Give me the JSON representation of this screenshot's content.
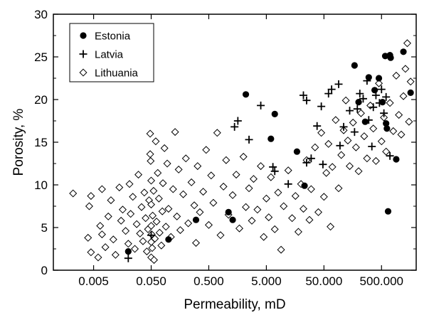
{
  "chart_data": {
    "type": "scatter",
    "title": "",
    "xlabel": "Permeability, mD",
    "ylabel": "Porosity, %",
    "xscale": "log",
    "xlim": [
      0.001,
      2000
    ],
    "ylim": [
      0,
      30
    ],
    "x_ticks": [
      0.005,
      0.05,
      0.5,
      5,
      50,
      500
    ],
    "x_tick_labels": [
      "0.005",
      "0.050",
      "0.500",
      "5.000",
      "50.000",
      "500.000"
    ],
    "y_ticks": [
      0,
      5,
      10,
      15,
      20,
      25,
      30
    ],
    "y_tick_labels": [
      "0",
      "5",
      "10",
      "15",
      "20",
      "25",
      "30"
    ],
    "grid": false,
    "legend_position": "top-left",
    "series": [
      {
        "name": "Estonia",
        "marker": "filled-circle",
        "points": [
          [
            0.02,
            2.2
          ],
          [
            0.1,
            3.6
          ],
          [
            0.3,
            5.9
          ],
          [
            1.1,
            6.8
          ],
          [
            1.3,
            5.9
          ],
          [
            2.2,
            20.6
          ],
          [
            7,
            18.3
          ],
          [
            6,
            15.4
          ],
          [
            17,
            13.9
          ],
          [
            23,
            9.9
          ],
          [
            170,
            24
          ],
          [
            200,
            19.7
          ],
          [
            260,
            17.4
          ],
          [
            300,
            22.6
          ],
          [
            380,
            21.1
          ],
          [
            450,
            22.5
          ],
          [
            520,
            19.7
          ],
          [
            580,
            25.1
          ],
          [
            600,
            17.2
          ],
          [
            620,
            16.6
          ],
          [
            650,
            6.9
          ],
          [
            700,
            25.2
          ],
          [
            720,
            24.9
          ],
          [
            900,
            13
          ],
          [
            1200,
            25.6
          ],
          [
            1600,
            20.8
          ]
        ]
      },
      {
        "name": "Latvia",
        "marker": "plus",
        "points": [
          [
            0.02,
            1.4
          ],
          [
            0.05,
            4.1
          ],
          [
            1.4,
            16.8
          ],
          [
            1.6,
            17.5
          ],
          [
            2.5,
            15.3
          ],
          [
            4,
            19.3
          ],
          [
            6.5,
            12.1
          ],
          [
            7,
            11.6
          ],
          [
            12,
            10.1
          ],
          [
            22,
            20.5
          ],
          [
            25,
            19.9
          ],
          [
            25,
            12.6
          ],
          [
            30,
            13.1
          ],
          [
            38,
            16.9
          ],
          [
            45,
            19.2
          ],
          [
            48,
            12.4
          ],
          [
            60,
            20.7
          ],
          [
            68,
            21.2
          ],
          [
            90,
            21.8
          ],
          [
            95,
            14.6
          ],
          [
            110,
            16.8
          ],
          [
            140,
            18.7
          ],
          [
            170,
            16.2
          ],
          [
            190,
            18.9
          ],
          [
            210,
            20.7
          ],
          [
            240,
            20.1
          ],
          [
            280,
            22.2
          ],
          [
            300,
            17.6
          ],
          [
            340,
            14.5
          ],
          [
            360,
            19.1
          ],
          [
            400,
            20.5
          ],
          [
            460,
            19.6
          ],
          [
            500,
            21.2
          ],
          [
            550,
            18.4
          ],
          [
            600,
            20.3
          ],
          [
            700,
            13.4
          ]
        ]
      },
      {
        "name": "Lithuania",
        "marker": "open-diamond",
        "points": [
          [
            0.0022,
            9
          ],
          [
            0.0045,
            8.7
          ],
          [
            0.0042,
            7.5
          ],
          [
            0.004,
            3.8
          ],
          [
            0.0045,
            2.1
          ],
          [
            0.006,
            1.5
          ],
          [
            0.0065,
            5.2
          ],
          [
            0.007,
            9.5
          ],
          [
            0.007,
            4.2
          ],
          [
            0.008,
            2.7
          ],
          [
            0.009,
            6.3
          ],
          [
            0.01,
            8.2
          ],
          [
            0.011,
            3.6
          ],
          [
            0.012,
            1.8
          ],
          [
            0.014,
            9.7
          ],
          [
            0.015,
            5.8
          ],
          [
            0.016,
            7.1
          ],
          [
            0.018,
            4.6
          ],
          [
            0.02,
            3.1
          ],
          [
            0.021,
            10.1
          ],
          [
            0.022,
            6.6
          ],
          [
            0.024,
            8.6
          ],
          [
            0.026,
            2.5
          ],
          [
            0.028,
            5.4
          ],
          [
            0.03,
            11.2
          ],
          [
            0.032,
            4.3
          ],
          [
            0.034,
            7.4
          ],
          [
            0.036,
            3.4
          ],
          [
            0.038,
            9.1
          ],
          [
            0.04,
            6.1
          ],
          [
            0.042,
            2.2
          ],
          [
            0.044,
            4.8
          ],
          [
            0.046,
            8.2
          ],
          [
            0.048,
            13.6
          ],
          [
            0.048,
            16
          ],
          [
            0.049,
            12.8
          ],
          [
            0.05,
            10.5
          ],
          [
            0.05,
            7.7
          ],
          [
            0.05,
            5.2
          ],
          [
            0.05,
            3.3
          ],
          [
            0.05,
            1.5
          ],
          [
            0.051,
            4.2
          ],
          [
            0.052,
            2.6
          ],
          [
            0.053,
            6.4
          ],
          [
            0.055,
            9.3
          ],
          [
            0.056,
            1.2
          ],
          [
            0.058,
            3.7
          ],
          [
            0.06,
            15.1
          ],
          [
            0.062,
            5.7
          ],
          [
            0.065,
            11.4
          ],
          [
            0.068,
            8.4
          ],
          [
            0.07,
            4.4
          ],
          [
            0.075,
            2.9
          ],
          [
            0.078,
            6.9
          ],
          [
            0.08,
            10.2
          ],
          [
            0.085,
            14.3
          ],
          [
            0.09,
            5.1
          ],
          [
            0.095,
            12.5
          ],
          [
            0.1,
            7.2
          ],
          [
            0.11,
            3.9
          ],
          [
            0.12,
            9.5
          ],
          [
            0.13,
            16.2
          ],
          [
            0.14,
            6.3
          ],
          [
            0.15,
            11.8
          ],
          [
            0.16,
            4.7
          ],
          [
            0.18,
            8.9
          ],
          [
            0.2,
            13.1
          ],
          [
            0.22,
            5.5
          ],
          [
            0.25,
            10.3
          ],
          [
            0.28,
            7.6
          ],
          [
            0.3,
            3.2
          ],
          [
            0.32,
            12.2
          ],
          [
            0.35,
            6.8
          ],
          [
            0.4,
            9.2
          ],
          [
            0.45,
            14.1
          ],
          [
            0.5,
            5.3
          ],
          [
            0.55,
            11.1
          ],
          [
            0.6,
            7.9
          ],
          [
            0.7,
            16.1
          ],
          [
            0.8,
            4.1
          ],
          [
            0.9,
            9.8
          ],
          [
            1,
            12.9
          ],
          [
            1.1,
            6.5
          ],
          [
            1.3,
            8.8
          ],
          [
            1.5,
            11.2
          ],
          [
            1.7,
            4.9
          ],
          [
            2,
            13.3
          ],
          [
            2.2,
            7.4
          ],
          [
            2.5,
            9.6
          ],
          [
            2.8,
            5.8
          ],
          [
            3,
            10.7
          ],
          [
            3.5,
            7.1
          ],
          [
            4,
            12.2
          ],
          [
            4.5,
            3.9
          ],
          [
            5,
            8.4
          ],
          [
            5.5,
            6.2
          ],
          [
            6,
            10.9
          ],
          [
            7,
            4.8
          ],
          [
            8,
            9.1
          ],
          [
            9,
            2.4
          ],
          [
            10,
            7.5
          ],
          [
            12,
            11.7
          ],
          [
            14,
            6.1
          ],
          [
            16,
            8.7
          ],
          [
            18,
            4.5
          ],
          [
            20,
            10.1
          ],
          [
            22,
            7.2
          ],
          [
            25,
            12.9
          ],
          [
            28,
            5.9
          ],
          [
            30,
            9.5
          ],
          [
            35,
            14.4
          ],
          [
            40,
            6.8
          ],
          [
            45,
            16.1
          ],
          [
            50,
            8.6
          ],
          [
            55,
            11.4
          ],
          [
            60,
            14.8
          ],
          [
            65,
            5.1
          ],
          [
            70,
            12.1
          ],
          [
            80,
            17.6
          ],
          [
            90,
            9.6
          ],
          [
            100,
            13.5
          ],
          [
            110,
            16.4
          ],
          [
            120,
            19.9
          ],
          [
            130,
            15.2
          ],
          [
            140,
            12.2
          ],
          [
            160,
            17.3
          ],
          [
            180,
            14.4
          ],
          [
            200,
            11.6
          ],
          [
            220,
            18.4
          ],
          [
            250,
            15.7
          ],
          [
            280,
            13.1
          ],
          [
            320,
            19.3
          ],
          [
            360,
            16.6
          ],
          [
            400,
            12.8
          ],
          [
            450,
            21.9
          ],
          [
            500,
            15.1
          ],
          [
            550,
            17.9
          ],
          [
            600,
            13.9
          ],
          [
            700,
            19.6
          ],
          [
            800,
            16.3
          ],
          [
            900,
            22.8
          ],
          [
            1000,
            18.2
          ],
          [
            1100,
            15.9
          ],
          [
            1200,
            20.4
          ],
          [
            1300,
            23.6
          ],
          [
            1400,
            26.6
          ],
          [
            1500,
            17.4
          ],
          [
            1600,
            22.1
          ]
        ]
      }
    ]
  }
}
